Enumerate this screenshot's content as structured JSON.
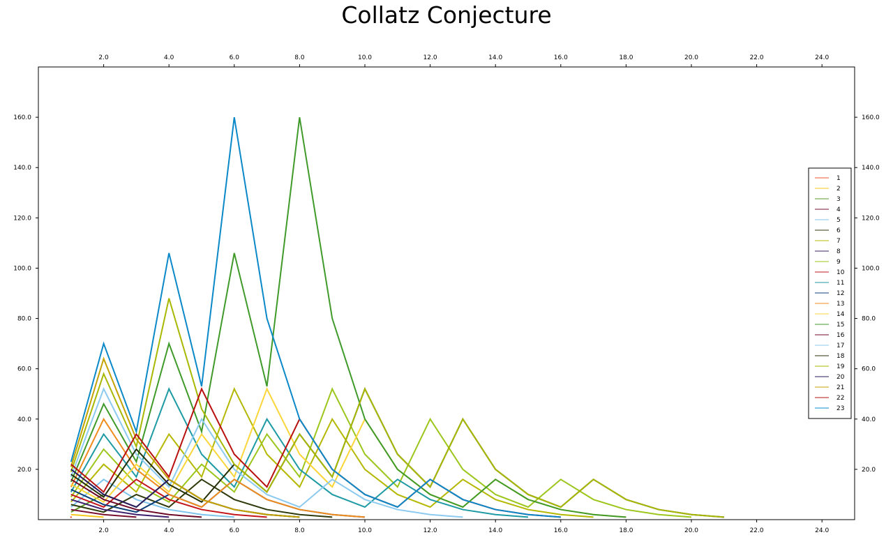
{
  "chart_data": {
    "type": "line",
    "title": "Collatz Conjecture",
    "xlabel": "",
    "ylabel": "",
    "xlim": [
      0,
      25
    ],
    "ylim": [
      0,
      180
    ],
    "x_ticks": [
      2.0,
      4.0,
      6.0,
      8.0,
      10.0,
      12.0,
      14.0,
      16.0,
      18.0,
      20.0,
      22.0,
      24.0
    ],
    "y_ticks": [
      20.0,
      40.0,
      60.0,
      80.0,
      100.0,
      120.0,
      140.0,
      160.0
    ],
    "tick_format_decimals": 1,
    "grid": false,
    "legend_position": "right",
    "series": [
      {
        "name": "1",
        "color": "#e8542a",
        "values": [
          1
        ]
      },
      {
        "name": "2",
        "color": "#f7c81e",
        "values": [
          2,
          1
        ]
      },
      {
        "name": "3",
        "color": "#5a9b27",
        "values": [
          3,
          10,
          5,
          16,
          8,
          4,
          2,
          1
        ]
      },
      {
        "name": "4",
        "color": "#7a1030",
        "values": [
          4,
          2,
          1
        ]
      },
      {
        "name": "5",
        "color": "#7fc4ec",
        "values": [
          5,
          16,
          8,
          4,
          2,
          1
        ]
      },
      {
        "name": "6",
        "color": "#2e3a0c",
        "values": [
          6,
          3,
          10,
          5,
          16,
          8,
          4,
          2,
          1
        ]
      },
      {
        "name": "7",
        "color": "#b5b800",
        "values": [
          7,
          22,
          11,
          34,
          17,
          52,
          26,
          13,
          40,
          20,
          10,
          5,
          16,
          8,
          4,
          2,
          1
        ]
      },
      {
        "name": "8",
        "color": "#3f1f6e",
        "values": [
          8,
          4,
          2,
          1
        ]
      },
      {
        "name": "9",
        "color": "#9cc61c",
        "values": [
          9,
          28,
          14,
          7,
          22,
          11,
          34,
          17,
          52,
          26,
          13,
          40,
          20,
          10,
          5,
          16,
          8,
          4,
          2,
          1
        ]
      },
      {
        "name": "10",
        "color": "#c4151c",
        "values": [
          10,
          5,
          16,
          8,
          4,
          2,
          1
        ]
      },
      {
        "name": "11",
        "color": "#1d9aa3",
        "values": [
          11,
          34,
          17,
          52,
          26,
          13,
          40,
          20,
          10,
          5,
          16,
          8,
          4,
          2,
          1
        ]
      },
      {
        "name": "12",
        "color": "#0d3f7a",
        "values": [
          12,
          6,
          3,
          10,
          5,
          16,
          8,
          4,
          2,
          1
        ]
      },
      {
        "name": "13",
        "color": "#f08c1e",
        "values": [
          13,
          40,
          20,
          10,
          5,
          16,
          8,
          4,
          2,
          1
        ]
      },
      {
        "name": "14",
        "color": "#fbd63a",
        "values": [
          14,
          7,
          22,
          11,
          34,
          17,
          52,
          26,
          13,
          40,
          20,
          10,
          5,
          16,
          8,
          4,
          2,
          1
        ]
      },
      {
        "name": "15",
        "color": "#3f9a2a",
        "values": [
          15,
          46,
          23,
          70,
          35,
          106,
          53,
          160,
          80,
          40,
          20,
          10,
          5,
          16,
          8,
          4,
          2,
          1
        ]
      },
      {
        "name": "16",
        "color": "#6e0a28",
        "values": [
          16,
          8,
          4,
          2,
          1
        ]
      },
      {
        "name": "17",
        "color": "#8ccaf0",
        "values": [
          17,
          52,
          26,
          13,
          40,
          20,
          10,
          5,
          16,
          8,
          4,
          2,
          1
        ]
      },
      {
        "name": "18",
        "color": "#243008",
        "values": [
          18,
          9,
          28,
          14,
          7,
          22,
          11,
          34,
          17,
          52,
          26,
          13,
          40,
          20,
          10,
          5,
          16,
          8,
          4,
          2,
          1
        ]
      },
      {
        "name": "19",
        "color": "#a8b800",
        "values": [
          19,
          58,
          29,
          88,
          44,
          22,
          11,
          34,
          17,
          52,
          26,
          13,
          40,
          20,
          10,
          5,
          16,
          8,
          4,
          2,
          1
        ]
      },
      {
        "name": "20",
        "color": "#2a1a5e",
        "values": [
          20,
          10,
          5,
          16,
          8,
          4,
          2,
          1
        ]
      },
      {
        "name": "21",
        "color": "#c4a200",
        "values": [
          21,
          64,
          32,
          16,
          8,
          4,
          2,
          1
        ]
      },
      {
        "name": "22",
        "color": "#b8100e",
        "values": [
          22,
          11,
          34,
          17,
          52,
          26,
          13,
          40,
          20,
          10,
          5,
          16,
          8,
          4,
          2,
          1
        ]
      },
      {
        "name": "23",
        "color": "#0a88c8",
        "values": [
          23,
          70,
          35,
          106,
          53,
          160,
          80,
          40,
          20,
          10,
          5,
          16,
          8,
          4,
          2,
          1
        ]
      }
    ]
  }
}
